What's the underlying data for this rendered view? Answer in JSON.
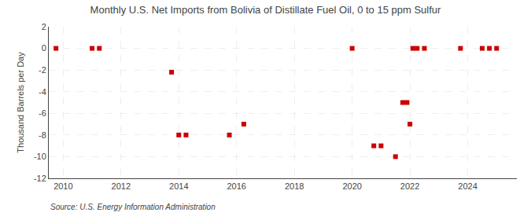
{
  "chart_data": {
    "type": "scatter",
    "title": "Monthly U.S. Net Imports from Bolivia of Distillate Fuel Oil, 0 to 15 ppm Sulfur",
    "ylabel": "Thousand Barrels per Day",
    "annotations": [
      "Source: U.S. Energy Information Administration"
    ],
    "x": [
      2009.75,
      2011.0,
      2011.25,
      2013.75,
      2014.0,
      2014.25,
      2015.75,
      2016.25,
      2020.0,
      2020.75,
      2021.0,
      2021.5,
      2021.75,
      2021.9,
      2022.0,
      2022.1,
      2022.25,
      2022.5,
      2023.75,
      2024.5,
      2024.75,
      2025.0
    ],
    "values": [
      0,
      0,
      0,
      -2.2,
      -8,
      -8,
      -8,
      -7,
      0,
      -9,
      -9,
      -10,
      -5,
      -5,
      -7,
      0,
      0,
      0,
      0,
      0,
      0,
      0
    ],
    "color": "#cc0000",
    "marker": "square",
    "xlim": [
      2009.5,
      2025.7
    ],
    "xticks": [
      2010,
      2012,
      2014,
      2016,
      2018,
      2020,
      2022,
      2024
    ],
    "ylim": [
      -12,
      2
    ],
    "yticks": [
      2,
      0,
      -2,
      -4,
      -6,
      -8,
      -10,
      -12
    ],
    "grid": true
  }
}
